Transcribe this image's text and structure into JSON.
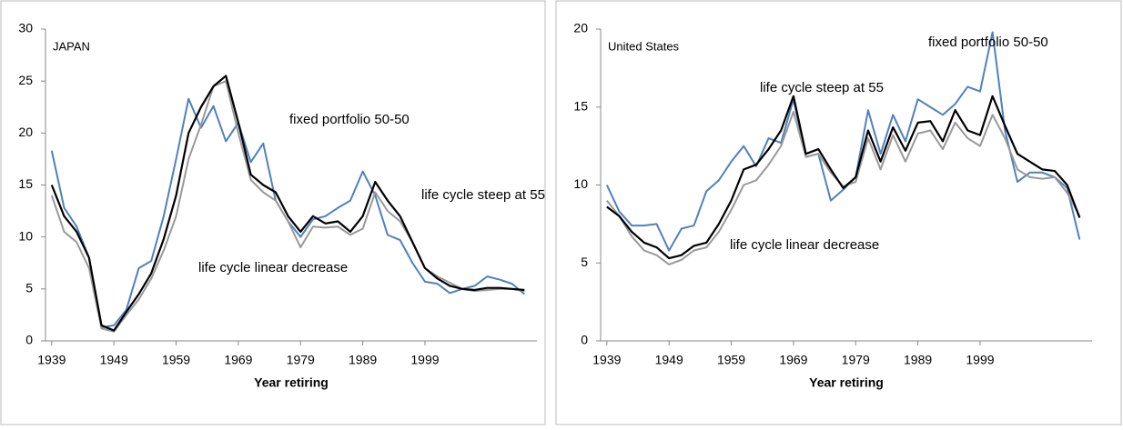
{
  "chart_data": [
    {
      "type": "line",
      "xlim": [
        1938,
        2017
      ],
      "xticks": [
        1939,
        1949,
        1959,
        1969,
        1979,
        1989,
        1999
      ],
      "ylim": [
        0,
        30
      ],
      "yticks": [
        0,
        5,
        10,
        15,
        20,
        25,
        30
      ],
      "x_label": "Year retiring",
      "annotations": [
        "JAPAN",
        "fixed portfolio 50-50",
        "life cycle steep at 55",
        "life cycle linear decrease"
      ],
      "x": [
        1939,
        1941,
        1943,
        1945,
        1947,
        1949,
        1951,
        1953,
        1955,
        1957,
        1959,
        1961,
        1963,
        1965,
        1967,
        1969,
        1971,
        1973,
        1975,
        1977,
        1979,
        1981,
        1983,
        1985,
        1987,
        1989,
        1991,
        1993,
        1995,
        1997,
        1999,
        2001,
        2003,
        2005,
        2007,
        2009,
        2011,
        2013,
        2015
      ],
      "series": [
        {
          "name": "fixed portfolio 50-50",
          "color": "#4f81bd",
          "values": [
            18.3,
            12.8,
            11,
            8,
            1.3,
            1.5,
            3,
            7,
            7.7,
            12,
            17.5,
            23.3,
            20.5,
            22.6,
            19.2,
            21,
            17.2,
            19,
            13.5,
            11.5,
            10,
            11.7,
            12,
            12.8,
            13.5,
            16.3,
            14,
            10.2,
            9.7,
            7.5,
            5.7,
            5.5,
            4.6,
            5,
            5.3,
            6.2,
            5.9,
            5.5,
            4.5
          ]
        },
        {
          "name": "life cycle linear decrease",
          "color": "#999999",
          "values": [
            14,
            10.5,
            9.5,
            7,
            1.2,
            0.9,
            2.5,
            4,
            6,
            8.7,
            12,
            17.5,
            20.8,
            24.5,
            25,
            20,
            15.5,
            14.3,
            13.5,
            11.5,
            9,
            11,
            10.9,
            11,
            10.2,
            10.8,
            14.3,
            12.5,
            11.5,
            9.5,
            7,
            6.2,
            5.6,
            5,
            4.8,
            4.9,
            5,
            5,
            4.8
          ]
        },
        {
          "name": "life cycle steep at 55",
          "color": "#000000",
          "values": [
            15,
            12,
            10.5,
            8,
            1.5,
            1,
            2.8,
            4.5,
            6.5,
            9.8,
            14,
            20,
            22.5,
            24.5,
            25.5,
            21,
            16,
            15,
            14.3,
            12,
            10.5,
            12,
            11.3,
            11.5,
            10.5,
            12,
            15.3,
            13.5,
            12,
            9.5,
            7,
            6,
            5.3,
            5,
            4.9,
            5.1,
            5.1,
            5,
            4.9
          ]
        }
      ]
    },
    {
      "type": "line",
      "xlim": [
        1938,
        2017
      ],
      "xticks": [
        1939,
        1949,
        1959,
        1969,
        1979,
        1989,
        1999
      ],
      "ylim": [
        0,
        20
      ],
      "yticks": [
        0,
        5,
        10,
        15,
        20
      ],
      "x_label": "Year retiring",
      "annotations": [
        "United States",
        "fixed portfolio 50-50",
        "life cycle steep at 55",
        "life cycle linear decrease"
      ],
      "x": [
        1939,
        1941,
        1943,
        1945,
        1947,
        1949,
        1951,
        1953,
        1955,
        1957,
        1959,
        1961,
        1963,
        1965,
        1967,
        1969,
        1971,
        1973,
        1975,
        1977,
        1979,
        1981,
        1983,
        1985,
        1987,
        1989,
        1991,
        1993,
        1995,
        1997,
        1999,
        2001,
        2003,
        2005,
        2007,
        2009,
        2011,
        2013,
        2015
      ],
      "series": [
        {
          "name": "fixed portfolio 50-50",
          "color": "#4f81bd",
          "values": [
            10,
            8.3,
            7.4,
            7.4,
            7.5,
            5.8,
            7.2,
            7.4,
            9.6,
            10.3,
            11.5,
            12.5,
            11.2,
            13,
            12.7,
            15.5,
            11.8,
            12,
            9,
            9.7,
            10.5,
            14.8,
            12,
            14.5,
            12.8,
            15.5,
            15,
            14.5,
            15.2,
            16.3,
            16,
            19.8,
            13.5,
            10.2,
            10.8,
            10.8,
            10.5,
            9.8,
            6.5
          ]
        },
        {
          "name": "life cycle linear decrease",
          "color": "#999999",
          "values": [
            9,
            8,
            6.7,
            5.8,
            5.5,
            4.9,
            5.2,
            5.8,
            6,
            7,
            8.4,
            10,
            10.3,
            11.3,
            12.5,
            14.7,
            11.8,
            12,
            10.8,
            9.9,
            10.2,
            13,
            11,
            13.2,
            11.5,
            13.3,
            13.5,
            12.3,
            14,
            13,
            12.5,
            14.5,
            13,
            11,
            10.5,
            10.4,
            10.5,
            9.5,
            8
          ]
        },
        {
          "name": "life cycle steep at 55",
          "color": "#000000",
          "values": [
            8.6,
            8,
            7,
            6.3,
            6,
            5.3,
            5.5,
            6.1,
            6.3,
            7.5,
            9,
            11,
            11.3,
            12.3,
            13.5,
            15.7,
            12,
            12.3,
            11,
            9.8,
            10.5,
            13.5,
            11.5,
            13.7,
            12.2,
            14,
            14.1,
            12.8,
            14.8,
            13.5,
            13.2,
            15.7,
            13.8,
            12,
            11.5,
            11,
            10.9,
            10,
            7.9
          ]
        }
      ]
    }
  ]
}
